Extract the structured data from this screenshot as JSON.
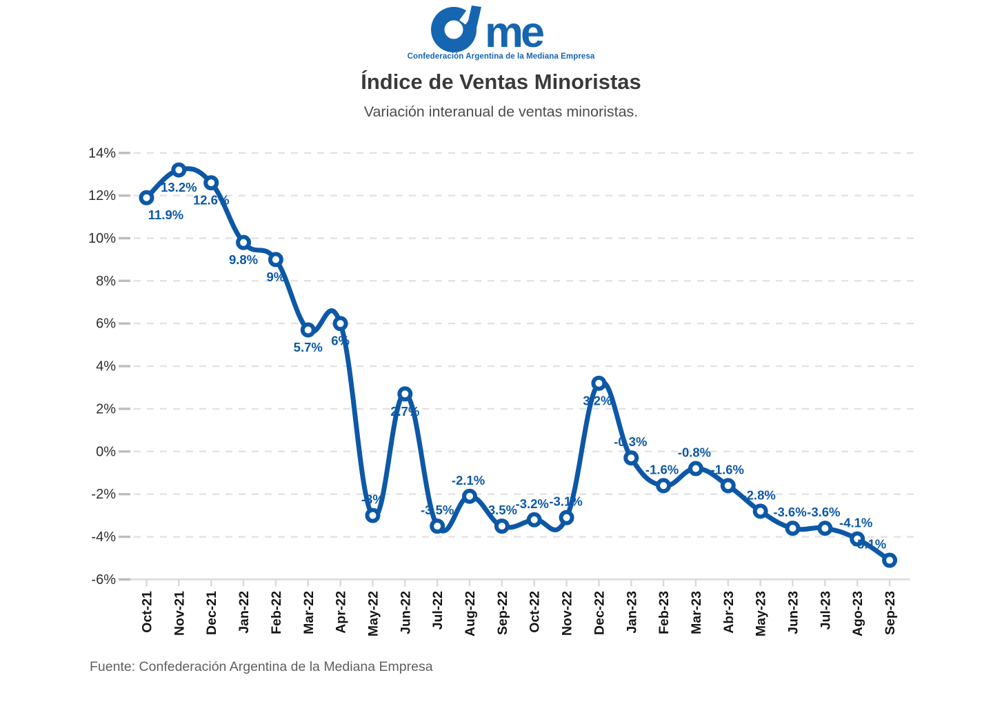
{
  "logo": {
    "brand": "Came",
    "brand_me": "me",
    "caption": "Confederación Argentina de la Mediana Empresa",
    "color": "#1565b1"
  },
  "header": {
    "title": "Índice de Ventas Minoristas",
    "subtitle": "Variación interanual de ventas minoristas."
  },
  "footer": {
    "source": "Fuente: Confederación Argentina de la Mediana Empresa"
  },
  "chart_data": {
    "type": "line",
    "title": "Índice de Ventas Minoristas",
    "subtitle": "Variación interanual de ventas minoristas.",
    "xlabel": "",
    "ylabel": "",
    "ylim": [
      -6,
      14
    ],
    "yticks": [
      14,
      12,
      10,
      8,
      6,
      4,
      2,
      0,
      -2,
      -4,
      -6
    ],
    "ytick_suffix": "%",
    "grid": "horizontal-dashed",
    "legend": "none",
    "line_color": "#0d58a6",
    "marker": "open-circle",
    "categories": [
      "Oct-21",
      "Nov-21",
      "Dec-21",
      "Jan-22",
      "Feb-22",
      "Mar-22",
      "Apr-22",
      "May-22",
      "Jun-22",
      "Jul-22",
      "Aug-22",
      "Sep-22",
      "Oct-22",
      "Nov-22",
      "Dec-22",
      "Jan-23",
      "Feb-23",
      "Mar-23",
      "Abr-23",
      "May-23",
      "Jun-23",
      "Jul-23",
      "Ago-23",
      "Sep-23"
    ],
    "series": [
      {
        "name": "Variación interanual de ventas minoristas",
        "values": [
          11.9,
          13.2,
          12.6,
          9.8,
          9,
          5.7,
          6,
          -3,
          2.7,
          -3.5,
          -2.1,
          -3.5,
          -3.2,
          -3.1,
          3.2,
          -0.3,
          -1.6,
          -0.8,
          -1.6,
          -2.8,
          -3.6,
          -3.6,
          -4.1,
          -5.1
        ]
      }
    ],
    "point_labels": [
      "11.9%",
      "13.2%",
      "12.6%",
      "9.8%",
      "9%",
      "5.7%",
      "6%",
      "-3%",
      "2.7%",
      "-3.5%",
      "-2.1%",
      "-3.5%",
      "-3.2%",
      "-3.1%",
      "3.2%",
      "-0.3%",
      "-1.6%",
      "-0.8%",
      "-1.6%",
      "-2.8%",
      "-3.6%",
      "-3.6%",
      "-4.1%",
      "-5.1%"
    ],
    "label_positions": [
      "below",
      "below",
      "below",
      "below",
      "below",
      "below",
      "below",
      "above",
      "below",
      "above",
      "above",
      "above",
      "above",
      "above",
      "below",
      "above",
      "above",
      "above",
      "above",
      "above",
      "above",
      "above",
      "above",
      "above"
    ],
    "label_dx": [
      28,
      0,
      0,
      0,
      0,
      0,
      0,
      0,
      0,
      0,
      -2,
      -2,
      -3,
      -1,
      -2,
      -1,
      -2,
      -2,
      -1,
      -2,
      -4,
      -2,
      -2,
      -29
    ]
  }
}
